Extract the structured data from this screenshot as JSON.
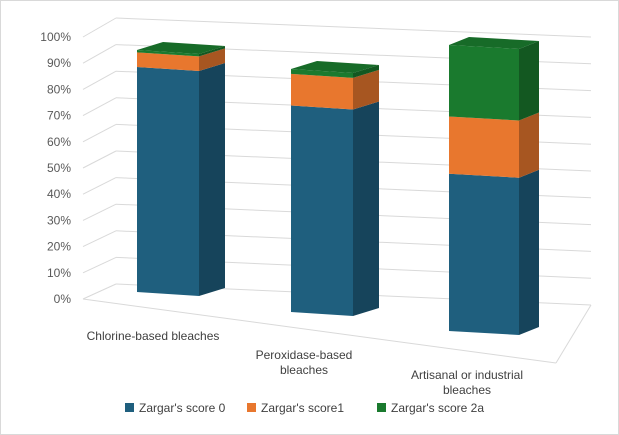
{
  "chart_data": {
    "type": "bar",
    "stacked": true,
    "percent_stacked": true,
    "three_d": true,
    "title": "",
    "xlabel": "",
    "ylabel": "",
    "ylim": [
      0,
      100
    ],
    "y_ticks": [
      "0%",
      "10%",
      "20%",
      "30%",
      "40%",
      "50%",
      "60%",
      "70%",
      "80%",
      "90%",
      "100%"
    ],
    "grid": true,
    "legend_position": "bottom",
    "categories": [
      [
        "Chlorine-based bleaches"
      ],
      [
        "Peroxidase-based",
        "bleaches"
      ],
      [
        "Artisanal or industrial",
        "bleaches"
      ]
    ],
    "series": [
      {
        "name": "Zargar's score 0",
        "color": "#1f5f7e",
        "values": [
          93,
          85,
          55
        ]
      },
      {
        "name": "Zargar's score1",
        "color": "#e8772e",
        "values": [
          6,
          13,
          20
        ]
      },
      {
        "name": "Zargar's score 2a",
        "color": "#1a7a2e",
        "values": [
          1,
          2,
          25
        ]
      }
    ]
  }
}
